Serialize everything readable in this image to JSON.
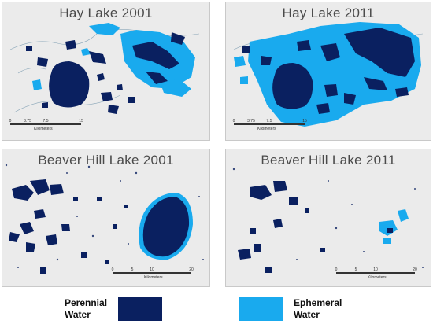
{
  "panels": {
    "hay2001": {
      "title": "Hay Lake 2001",
      "scale_ticks": [
        "0",
        "3.75",
        "7.5",
        "15"
      ],
      "scale_unit": "Kilometers"
    },
    "hay2011": {
      "title": "Hay Lake 2011",
      "scale_ticks": [
        "0",
        "3.75",
        "7.5",
        "15"
      ],
      "scale_unit": "Kilometers"
    },
    "beaver2001": {
      "title": "Beaver Hill Lake 2001",
      "scale_ticks": [
        "0",
        "5",
        "10",
        "20"
      ],
      "scale_unit": "Kilometers"
    },
    "beaver2011": {
      "title": "Beaver Hill Lake 2011",
      "scale_ticks": [
        "0",
        "5",
        "10",
        "20"
      ],
      "scale_unit": "Kilometers"
    }
  },
  "legend": {
    "perennial": {
      "line1": "Perennial",
      "line2": "Water",
      "color": "#0a2060"
    },
    "ephemeral": {
      "line1": "Ephemeral",
      "line2": "Water",
      "color": "#19aaee"
    }
  },
  "colors": {
    "panel_bg": "#ebebeb",
    "perennial": "#0a2060",
    "ephemeral": "#19aaee",
    "outline": "#8aa6b8"
  }
}
